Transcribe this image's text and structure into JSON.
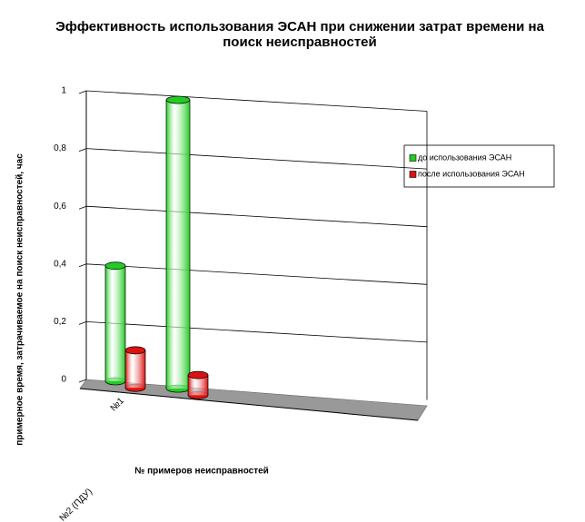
{
  "chart_data": {
    "type": "bar",
    "title": [
      "Эффективность  использования ЭСАН при снижении затрат времени на",
      "поиск неисправностей"
    ],
    "y_label": "примерное время, затрачиваемое на  поиск неисправностей, час",
    "x_label": "№ примеров неисправностей",
    "categories": [
      "№1",
      "№2 (ПДУ)"
    ],
    "series": [
      {
        "name": "до использования ЭСАН",
        "color": "#22cc22",
        "values": [
          0.4,
          1.0
        ]
      },
      {
        "name": "после использования ЭСАН",
        "color": "#dd1111",
        "values": [
          0.13,
          0.07
        ]
      }
    ],
    "ylim": [
      0,
      1
    ],
    "yticks": [
      0,
      {
        "value": 0.2,
        "label": "0,2"
      },
      {
        "value": 0.4,
        "label": "0,4"
      },
      {
        "value": 0.6,
        "label": "0,6"
      },
      {
        "value": 0.8,
        "label": "0,8"
      },
      1
    ],
    "grid": true
  }
}
